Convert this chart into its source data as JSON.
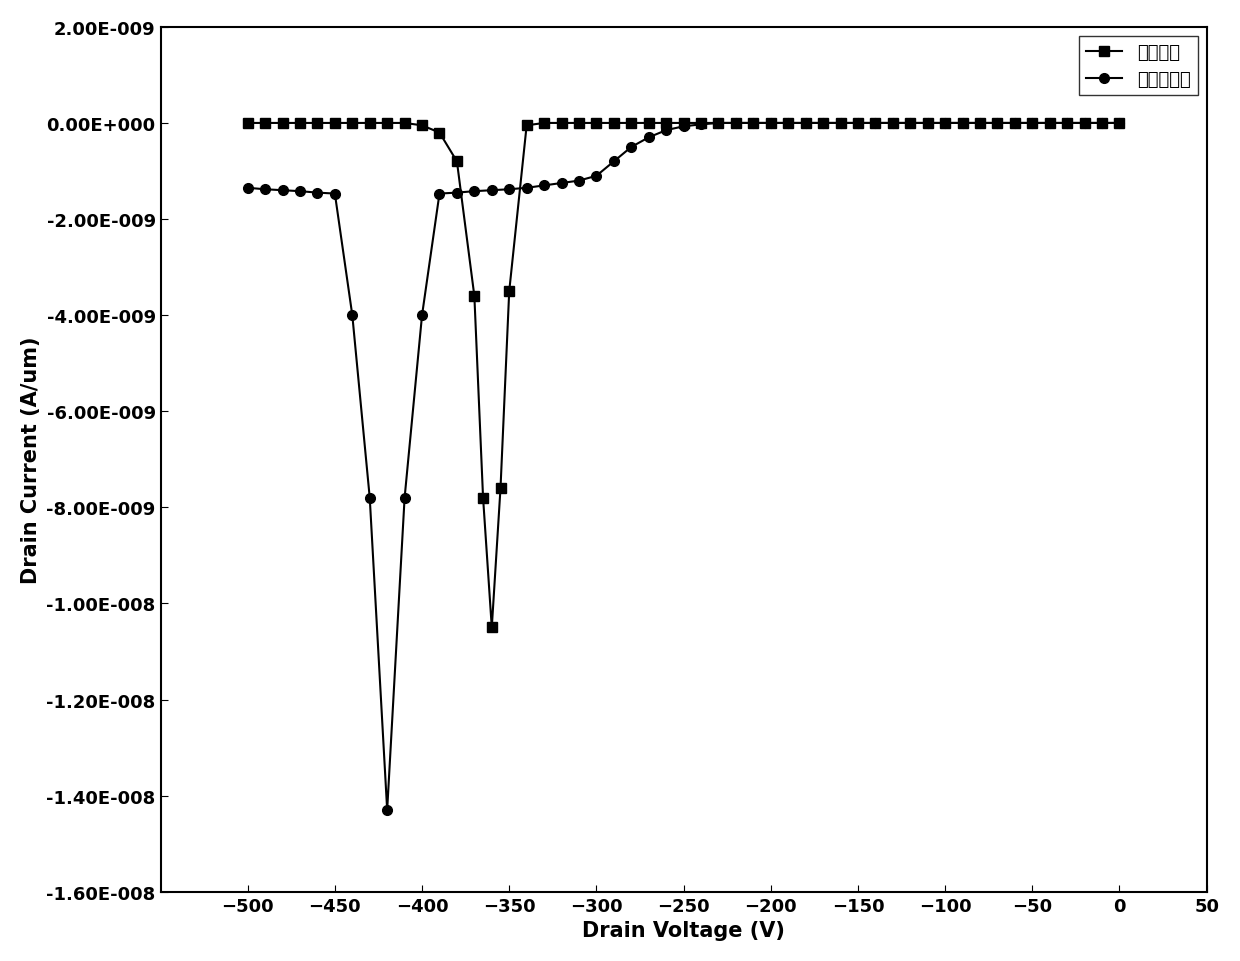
{
  "series1_label": "常规结构",
  "series2_label": "本发明结构",
  "series1_x": [
    0,
    -10,
    -20,
    -30,
    -40,
    -50,
    -60,
    -70,
    -80,
    -90,
    -100,
    -110,
    -120,
    -130,
    -140,
    -150,
    -160,
    -170,
    -180,
    -190,
    -200,
    -210,
    -220,
    -230,
    -240,
    -250,
    -260,
    -270,
    -280,
    -290,
    -300,
    -310,
    -320,
    -330,
    -340,
    -350,
    -355,
    -360,
    -365,
    -370,
    -380,
    -390,
    -400,
    -410,
    -420,
    -430,
    -440,
    -450,
    -460,
    -470,
    -480,
    -490,
    -500
  ],
  "series1_y": [
    0.0,
    0.0,
    0.0,
    0.0,
    0.0,
    0.0,
    0.0,
    0.0,
    0.0,
    0.0,
    0.0,
    0.0,
    0.0,
    0.0,
    0.0,
    0.0,
    0.0,
    0.0,
    0.0,
    0.0,
    0.0,
    0.0,
    0.0,
    0.0,
    0.0,
    0.0,
    0.0,
    0.0,
    0.0,
    0.0,
    0.0,
    0.0,
    0.0,
    0.0,
    -5e-11,
    -3.5e-09,
    -7.6e-09,
    -1.05e-08,
    -7.8e-09,
    -3.6e-09,
    -8e-10,
    -2e-10,
    -5e-11,
    0.0,
    0.0,
    0.0,
    0.0,
    0.0,
    0.0,
    0.0,
    0.0,
    0.0,
    0.0
  ],
  "series2_x": [
    0,
    -10,
    -20,
    -30,
    -40,
    -50,
    -60,
    -70,
    -80,
    -90,
    -100,
    -110,
    -120,
    -130,
    -140,
    -150,
    -160,
    -170,
    -180,
    -190,
    -200,
    -210,
    -220,
    -230,
    -240,
    -250,
    -260,
    -270,
    -280,
    -290,
    -300,
    -310,
    -320,
    -330,
    -340,
    -350,
    -360,
    -370,
    -380,
    -390,
    -400,
    -410,
    -420,
    -430,
    -440,
    -450,
    -460,
    -470,
    -480,
    -490,
    -500
  ],
  "series2_y": [
    0.0,
    0.0,
    0.0,
    0.0,
    0.0,
    0.0,
    0.0,
    0.0,
    0.0,
    0.0,
    0.0,
    0.0,
    0.0,
    0.0,
    0.0,
    0.0,
    0.0,
    0.0,
    0.0,
    0.0,
    0.0,
    0.0,
    0.0,
    0.0,
    -3e-11,
    -7e-11,
    -1.5e-10,
    -3e-10,
    -5e-10,
    -8e-10,
    -1.1e-09,
    -1.2e-09,
    -1.25e-09,
    -1.3e-09,
    -1.35e-09,
    -1.38e-09,
    -1.4e-09,
    -1.42e-09,
    -1.45e-09,
    -1.47e-09,
    -4e-09,
    -7.8e-09,
    -1.43e-08,
    -7.8e-09,
    -4e-09,
    -1.47e-09,
    -1.45e-09,
    -1.42e-09,
    -1.4e-09,
    -1.38e-09,
    -1.35e-09
  ],
  "xlabel": "Drain Voltage (V)",
  "ylabel": "Drain Current (A/um)",
  "xlim": [
    -550,
    50
  ],
  "ylim": [
    -1.6e-08,
    2e-09
  ],
  "xticks": [
    -500,
    -450,
    -400,
    -350,
    -300,
    -250,
    -200,
    -150,
    -100,
    -50,
    0,
    50
  ],
  "yticks": [
    -1.6e-08,
    -1.4e-08,
    -1.2e-08,
    -1e-08,
    -8e-09,
    -6e-09,
    -4e-09,
    -2e-09,
    0.0,
    2e-09
  ],
  "line_color": "#000000",
  "marker1": "s",
  "marker2": "o",
  "markersize": 7,
  "linewidth": 1.5,
  "legend_loc": "upper right",
  "tick_fontsize": 13,
  "label_fontsize": 15
}
